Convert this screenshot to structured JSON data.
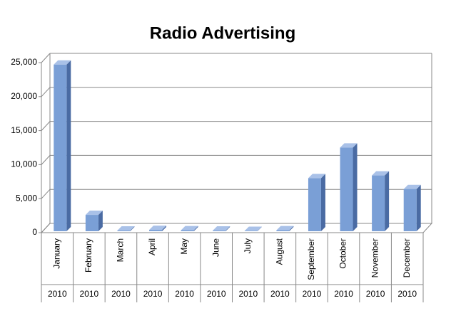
{
  "chart_data": {
    "type": "bar",
    "title": "Radio Advertising",
    "categories": [
      "January",
      "February",
      "March",
      "April",
      "May",
      "June",
      "July",
      "August",
      "September",
      "October",
      "November",
      "December"
    ],
    "category_groups": [
      "2010",
      "2010",
      "2010",
      "2010",
      "2010",
      "2010",
      "2010",
      "2010",
      "2010",
      "2010",
      "2010",
      "2010"
    ],
    "values": [
      24500,
      2400,
      100,
      200,
      150,
      100,
      50,
      150,
      7800,
      12300,
      8200,
      6200
    ],
    "color": "#7a9fd6",
    "ylim": [
      0,
      25000
    ],
    "yticks": [
      0,
      {
        "value": 5000,
        "label": "5,000"
      },
      {
        "value": 10000,
        "label": "10,000"
      },
      {
        "value": 15000,
        "label": "15,000"
      },
      {
        "value": 20000,
        "label": "20,000"
      },
      {
        "value": 25000,
        "label": "25,000"
      }
    ],
    "grid": true
  }
}
